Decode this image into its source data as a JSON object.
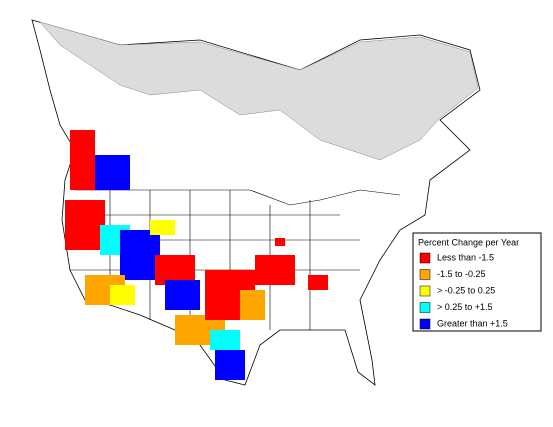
{
  "legend": {
    "title": "Percent Change per Year",
    "entries": [
      {
        "label": "Less than -1.5",
        "color": "#ff0000"
      },
      {
        "label": "-1.5 to -0.25",
        "color": "#ffa500"
      },
      {
        "label": "> -0.25 to 0.25",
        "color": "#ffff00"
      },
      {
        "label": "> 0.25 to +1.5",
        "color": "#00ffff"
      },
      {
        "label": "Greater than +1.5",
        "color": "#0000ff"
      }
    ]
  }
}
